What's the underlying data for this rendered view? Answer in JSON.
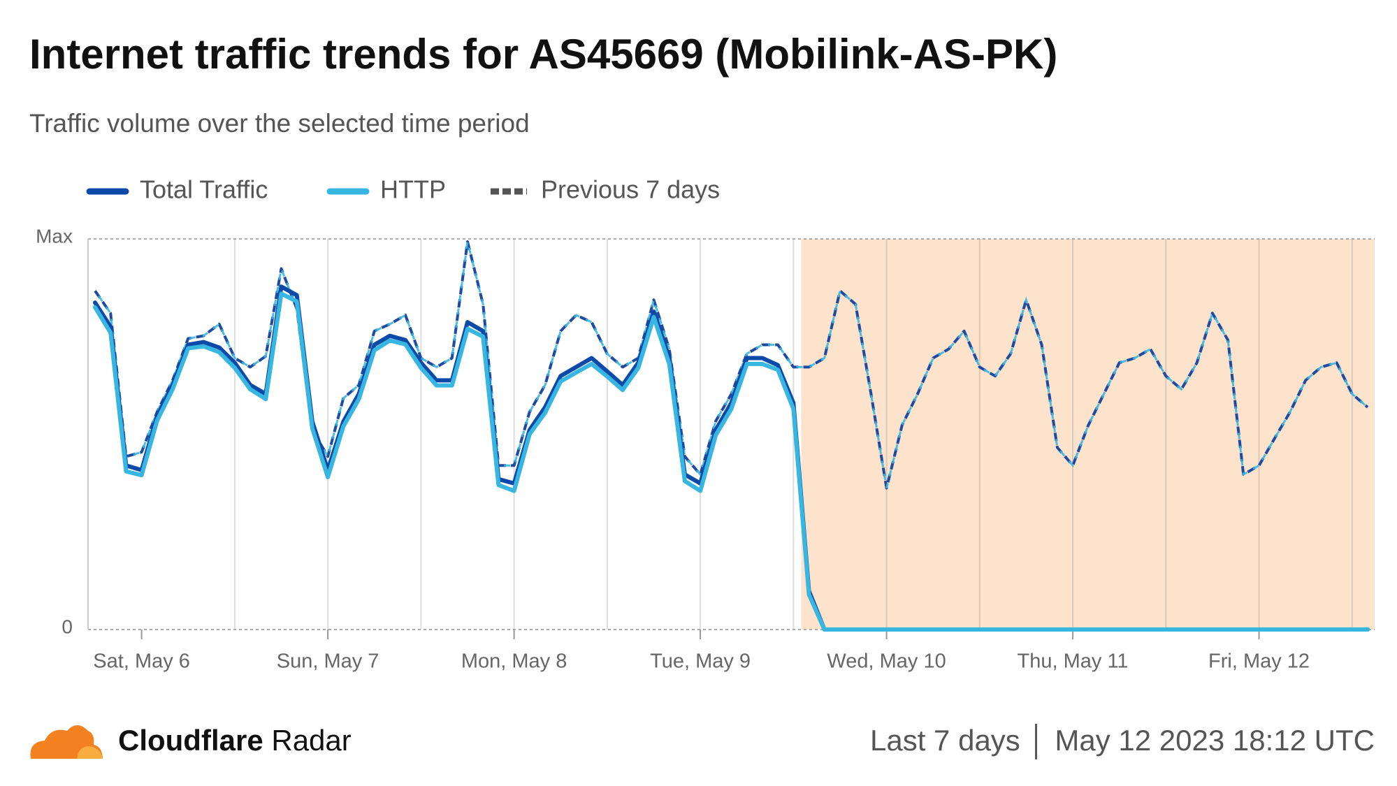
{
  "chart_data": {
    "type": "line",
    "title": "Internet traffic trends for AS45669 (Mobilink-AS-PK)",
    "subtitle": "Traffic volume over the selected time period",
    "x": [
      -6,
      -4,
      -2,
      0,
      2,
      4,
      6,
      8,
      10,
      12,
      14,
      16,
      18,
      20,
      22,
      24,
      26,
      28,
      30,
      32,
      34,
      36,
      38,
      40,
      42,
      44,
      46,
      48,
      50,
      52,
      54,
      56,
      58,
      60,
      62,
      64,
      66,
      68,
      70,
      72,
      74,
      76,
      78,
      80,
      82,
      84,
      86,
      88,
      90,
      92,
      94,
      96,
      98,
      100,
      102,
      104,
      106,
      108,
      110,
      112,
      114,
      116,
      118,
      120,
      122,
      124,
      126,
      128,
      130,
      132,
      134,
      136,
      138,
      140,
      142,
      144,
      146,
      148,
      150,
      152,
      154,
      156,
      158
    ],
    "xlim": [
      -6.9,
      158.9
    ],
    "xticks": [
      {
        "value": 0,
        "label": "Sat, May 6"
      },
      {
        "value": 24,
        "label": "Sun, May 7"
      },
      {
        "value": 48,
        "label": "Mon, May 8"
      },
      {
        "value": 72,
        "label": "Tue, May 9"
      },
      {
        "value": 96,
        "label": "Wed, May 10"
      },
      {
        "value": 120,
        "label": "Thu, May 11"
      },
      {
        "value": 144,
        "label": "Fri, May 12"
      }
    ],
    "xgrid": [
      12,
      24,
      36,
      48,
      60,
      72,
      84,
      96,
      108,
      120,
      132,
      144,
      156
    ],
    "ylim": [
      0,
      100
    ],
    "yticks": [
      0,
      {
        "value": 100,
        "label": "Max"
      }
    ],
    "highlight": {
      "from": 85,
      "to": 158.9,
      "color": "#fde3cc"
    },
    "series": [
      {
        "name": "Total Traffic",
        "color": "#0b4aa8",
        "values": [
          83.7,
          77.5,
          42,
          40.8,
          54.6,
          62.6,
          72.9,
          73.6,
          72.2,
          68.3,
          62.6,
          60.3,
          87.8,
          85.6,
          53.2,
          40.8,
          53.2,
          60.3,
          72.9,
          75.2,
          74.1,
          68.3,
          63.8,
          63.8,
          78.7,
          76.4,
          38.5,
          37.4,
          51.1,
          56.9,
          64.9,
          67.2,
          69.5,
          66.1,
          62.6,
          68.3,
          81.4,
          69.5,
          39.7,
          37.4,
          51.1,
          58,
          69.5,
          69.5,
          67.7,
          58,
          9.9,
          0,
          0,
          0,
          0,
          0,
          0,
          0,
          0,
          0,
          0,
          0,
          0,
          0,
          0,
          0,
          0,
          0,
          0,
          0,
          0,
          0,
          0,
          0,
          0,
          0,
          0,
          0,
          0,
          0,
          0,
          0,
          0,
          0,
          0,
          0,
          0
        ]
      },
      {
        "name": "HTTP",
        "color": "#36b6e0",
        "values": [
          82.5,
          76,
          40.5,
          39.5,
          53.5,
          61.5,
          72,
          72.5,
          71,
          67,
          61.5,
          59,
          86,
          84,
          51.5,
          39,
          52,
          59,
          71.5,
          74,
          73,
          67,
          62.5,
          62.5,
          77,
          75,
          37,
          35.5,
          50,
          55.5,
          63.5,
          65.8,
          68,
          64.8,
          61.3,
          67,
          80,
          68,
          38,
          35.5,
          49.8,
          56.5,
          68,
          68,
          66.5,
          56.5,
          9,
          0,
          0,
          0,
          0,
          0,
          0,
          0,
          0,
          0,
          0,
          0,
          0,
          0,
          0,
          0,
          0,
          0,
          0,
          0,
          0,
          0,
          0,
          0,
          0,
          0,
          0,
          0,
          0,
          0,
          0,
          0,
          0,
          0,
          0,
          0,
          0
        ]
      },
      {
        "name": "Previous 7 days",
        "color": "#1e4ba0",
        "dashed": true,
        "values": [
          86.7,
          81,
          44.3,
          45.4,
          55.7,
          63.8,
          74.5,
          75.2,
          78.2,
          69.5,
          67.2,
          70,
          92.4,
          82.1,
          51.1,
          44.3,
          59.2,
          62.6,
          76.4,
          78.2,
          80.5,
          69.5,
          67.2,
          69.5,
          99.3,
          83.3,
          42,
          42,
          55.7,
          62.6,
          76.4,
          80.5,
          78.7,
          70.6,
          67.2,
          69.5,
          84.4,
          71.8,
          44.3,
          39.7,
          53.4,
          60.3,
          70.6,
          72.9,
          72.9,
          67.2,
          67.2,
          69.5,
          86.7,
          83.3,
          60.3,
          36.2,
          52.3,
          60.3,
          69.5,
          71.8,
          76.4,
          67.2,
          64.9,
          70.6,
          84.4,
          72.9,
          46.6,
          42,
          52.3,
          60.3,
          68.3,
          69.5,
          71.8,
          64.9,
          61.5,
          68.3,
          81,
          74.1,
          39.7,
          42,
          48.9,
          55.7,
          63.8,
          67.2,
          68.3,
          60.3,
          56.9
        ]
      }
    ]
  },
  "footer": {
    "brand": "Cloudflare",
    "product": "Radar",
    "period": "Last 7 days",
    "timestamp": "May 12 2023 18:12 UTC"
  }
}
